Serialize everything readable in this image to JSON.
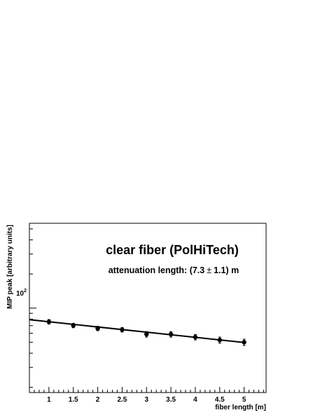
{
  "chart_data": {
    "type": "scatter",
    "title": "clear fiber (PolHiTech)",
    "subtitle_prefix": "attenuation length: (7.3",
    "subtitle_pm": "±",
    "subtitle_suffix": "1.1) m",
    "xlabel": "fiber length [m]",
    "ylabel": "MIP peak [arbitrary units]",
    "xlim": [
      0.6,
      5.45
    ],
    "ylim": [
      18,
      560
    ],
    "yscale": "log",
    "x_ticks": [
      "1",
      "1.5",
      "2",
      "2.5",
      "3",
      "3.5",
      "4",
      "4.5",
      "5"
    ],
    "y_tick_base": "10",
    "y_tick_exp": "2",
    "grid": false,
    "series": [
      {
        "x": [
          1.0,
          1.5,
          2.0,
          2.5,
          3.0,
          3.5,
          4.0,
          4.5,
          5.0
        ],
        "y": [
          75.8,
          70.3,
          66.2,
          64.5,
          58.8,
          58.8,
          55.5,
          52.3,
          50.0
        ],
        "yerr": [
          3.5,
          3.2,
          3.0,
          3.0,
          3.3,
          3.3,
          3.1,
          3.2,
          3.2
        ]
      }
    ],
    "fit": {
      "type": "exponential",
      "x": [
        0.6,
        5.0
      ],
      "y": [
        79.0,
        49.7
      ]
    },
    "colors": {
      "marker": "#000000",
      "line": "#000000",
      "axes": "#000000"
    }
  }
}
